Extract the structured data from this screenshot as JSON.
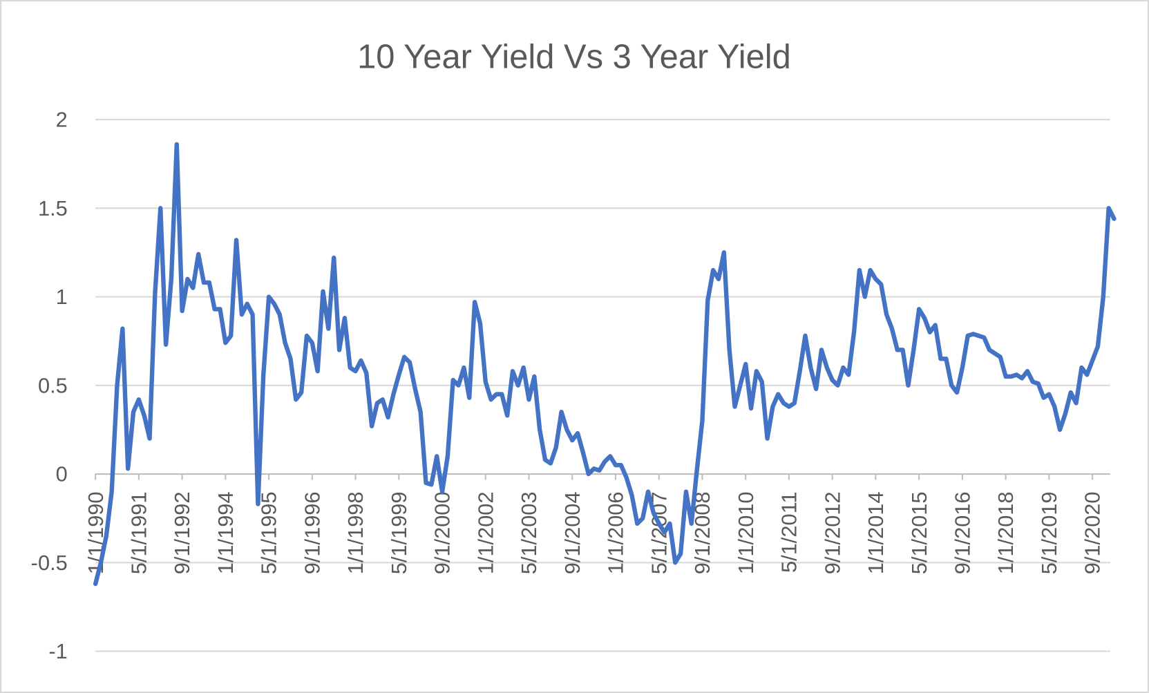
{
  "chart_data": {
    "type": "line",
    "title": "10 Year Yield Vs 3 Year Yield",
    "categories": [
      "1/1/1990",
      null,
      null,
      null,
      null,
      null,
      null,
      null,
      "5/1/1991",
      null,
      null,
      null,
      null,
      null,
      null,
      null,
      "9/1/1992",
      null,
      null,
      null,
      null,
      null,
      null,
      null,
      "1/1/1994",
      null,
      null,
      null,
      null,
      null,
      null,
      null,
      "5/1/1995",
      null,
      null,
      null,
      null,
      null,
      null,
      null,
      "9/1/1996",
      null,
      null,
      null,
      null,
      null,
      null,
      null,
      "1/1/1998",
      null,
      null,
      null,
      null,
      null,
      null,
      null,
      "5/1/1999",
      null,
      null,
      null,
      null,
      null,
      null,
      null,
      "9/1/2000",
      null,
      null,
      null,
      null,
      null,
      null,
      null,
      "1/1/2002",
      null,
      null,
      null,
      null,
      null,
      null,
      null,
      "5/1/2003",
      null,
      null,
      null,
      null,
      null,
      null,
      null,
      "9/1/2004",
      null,
      null,
      null,
      null,
      null,
      null,
      null,
      "1/1/2006",
      null,
      null,
      null,
      null,
      null,
      null,
      null,
      "5/1/2007",
      null,
      null,
      null,
      null,
      null,
      null,
      null,
      "9/1/2008",
      null,
      null,
      null,
      null,
      null,
      null,
      null,
      "1/1/2010",
      null,
      null,
      null,
      null,
      null,
      null,
      null,
      "5/1/2011",
      null,
      null,
      null,
      null,
      null,
      null,
      null,
      "9/1/2012",
      null,
      null,
      null,
      null,
      null,
      null,
      null,
      "1/1/2014",
      null,
      null,
      null,
      null,
      null,
      null,
      null,
      "5/1/2015",
      null,
      null,
      null,
      null,
      null,
      null,
      null,
      "9/1/2016",
      null,
      null,
      null,
      null,
      null,
      null,
      null,
      "1/1/2018",
      null,
      null,
      null,
      null,
      null,
      null,
      null,
      "5/1/2019",
      null,
      null,
      null,
      null,
      null,
      null,
      null,
      "9/1/2020",
      null,
      null,
      null,
      null
    ],
    "series": [
      {
        "color": "#4472c4",
        "values": [
          -0.62,
          -0.5,
          -0.35,
          -0.1,
          0.5,
          0.82,
          0.03,
          0.35,
          0.42,
          0.33,
          0.2,
          1.02,
          1.5,
          0.73,
          1.1,
          1.86,
          0.92,
          1.1,
          1.05,
          1.24,
          1.08,
          1.08,
          0.93,
          0.93,
          0.74,
          0.78,
          1.32,
          0.9,
          0.96,
          0.9,
          -0.17,
          0.56,
          1.0,
          0.96,
          0.9,
          0.74,
          0.65,
          0.42,
          0.46,
          0.78,
          0.74,
          0.58,
          1.03,
          0.82,
          1.22,
          0.7,
          0.88,
          0.6,
          0.58,
          0.64,
          0.57,
          0.27,
          0.4,
          0.42,
          0.32,
          0.45,
          0.56,
          0.66,
          0.63,
          0.48,
          0.35,
          -0.05,
          -0.06,
          0.1,
          -0.1,
          0.1,
          0.53,
          0.5,
          0.6,
          0.43,
          0.97,
          0.85,
          0.52,
          0.42,
          0.45,
          0.45,
          0.33,
          0.58,
          0.5,
          0.6,
          0.42,
          0.55,
          0.25,
          0.08,
          0.06,
          0.15,
          0.35,
          0.25,
          0.19,
          0.23,
          0.12,
          0.0,
          0.03,
          0.02,
          0.07,
          0.1,
          0.05,
          0.05,
          -0.02,
          -0.12,
          -0.28,
          -0.25,
          -0.1,
          -0.22,
          -0.28,
          -0.33,
          -0.28,
          -0.5,
          -0.45,
          -0.1,
          -0.28,
          0.02,
          0.3,
          0.98,
          1.15,
          1.1,
          1.25,
          0.7,
          0.38,
          0.5,
          0.62,
          0.37,
          0.58,
          0.52,
          0.2,
          0.38,
          0.45,
          0.4,
          0.38,
          0.4,
          0.58,
          0.78,
          0.6,
          0.48,
          0.7,
          0.6,
          0.53,
          0.5,
          0.6,
          0.56,
          0.8,
          1.15,
          1.0,
          1.15,
          1.1,
          1.07,
          0.9,
          0.82,
          0.7,
          0.7,
          0.5,
          0.7,
          0.93,
          0.88,
          0.8,
          0.84,
          0.65,
          0.65,
          0.5,
          0.46,
          0.6,
          0.78,
          0.79,
          0.78,
          0.77,
          0.7,
          0.68,
          0.66,
          0.55,
          0.55,
          0.56,
          0.54,
          0.58,
          0.52,
          0.51,
          0.43,
          0.45,
          0.38,
          0.25,
          0.34,
          0.46,
          0.4,
          0.6,
          0.56,
          0.64,
          0.72,
          1.0,
          1.5,
          1.44
        ]
      }
    ],
    "ylim": [
      -1,
      2
    ],
    "yticks": [
      -1,
      -0.5,
      0,
      0.5,
      1,
      1.5,
      2
    ],
    "grid": true
  }
}
